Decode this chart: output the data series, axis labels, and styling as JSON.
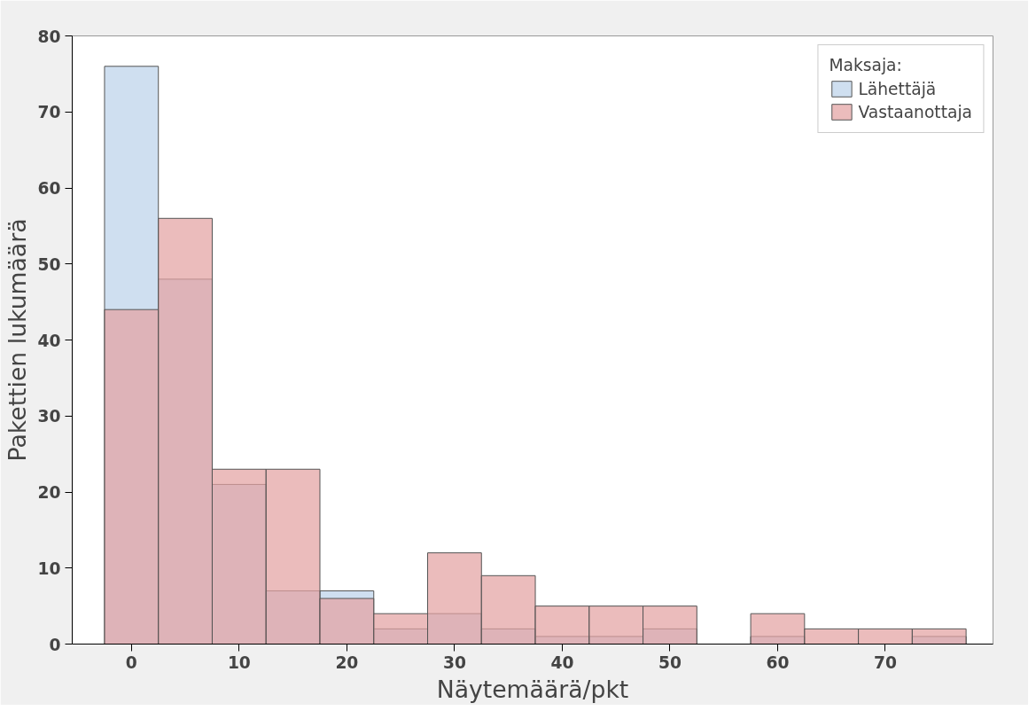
{
  "chart_data": {
    "type": "histogram",
    "xlabel": "Näytemäärä/pkt",
    "ylabel": "Pakettien lukumäärä",
    "legend_title": "Maksaja:",
    "legend": "top right",
    "grid": false,
    "bins": [
      -2.5,
      2.5,
      7.5,
      12.5,
      17.5,
      22.5,
      27.5,
      32.5,
      37.5,
      42.5,
      47.5,
      52.5,
      57.5,
      62.5,
      67.5,
      72.5,
      77.5
    ],
    "series": [
      {
        "name": "Lähettäjä",
        "color": "#cfdff0",
        "values": [
          76,
          48,
          21,
          7,
          7,
          2,
          4,
          2,
          1,
          1,
          2,
          0,
          1,
          0,
          0,
          1
        ]
      },
      {
        "name": "Vastaanottaja",
        "color": "#ebbcbc",
        "values": [
          44,
          56,
          23,
          23,
          6,
          4,
          12,
          9,
          5,
          5,
          5,
          0,
          4,
          2,
          2,
          2
        ]
      }
    ],
    "xlim": [
      -5.5,
      80
    ],
    "ylim": [
      0,
      80
    ],
    "xticks": [
      0,
      10,
      20,
      30,
      40,
      50,
      60,
      70
    ],
    "yticks": [
      0,
      10,
      20,
      30,
      40,
      50,
      60,
      70,
      80
    ]
  }
}
